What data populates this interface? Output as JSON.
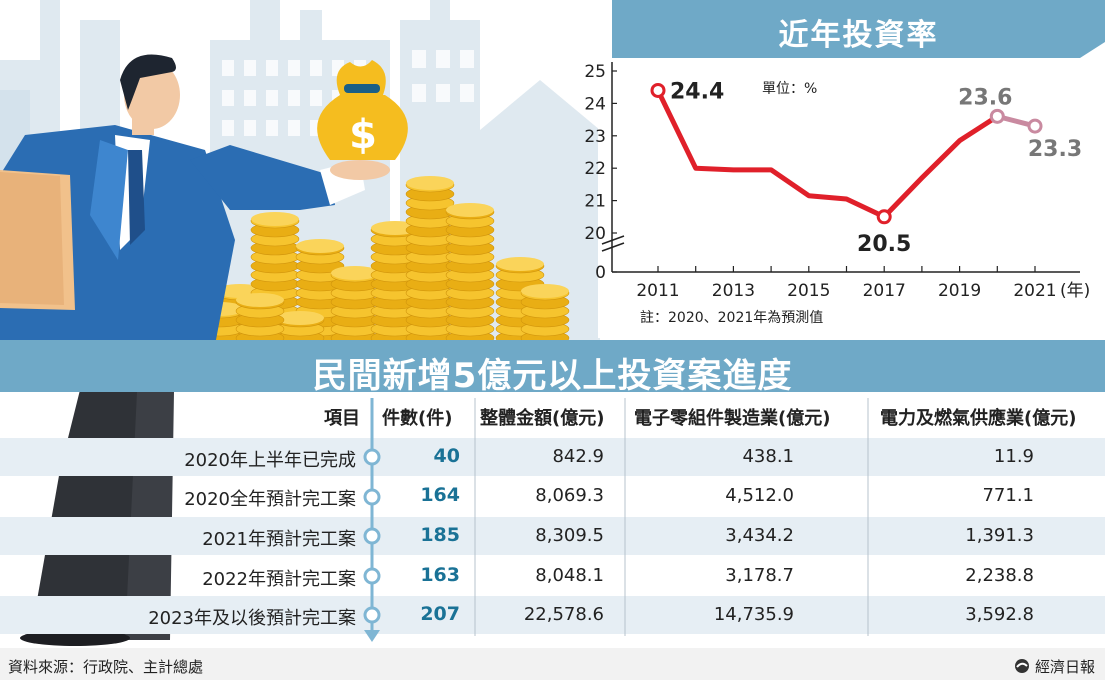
{
  "chart_data": {
    "type": "line",
    "title": "近年投資率",
    "unit_note": "單位：%",
    "footnote": "註：2020、2021年為預測值",
    "x_unit": "(年)",
    "x_ticks": [
      "2011",
      "2013",
      "2015",
      "2017",
      "2019",
      "2021"
    ],
    "y_ticks": [
      "0",
      "20",
      "21",
      "22",
      "23",
      "24",
      "25"
    ],
    "ylim": [
      20,
      25
    ],
    "axis_break": true,
    "series": [
      {
        "role": "actual",
        "x": [
          2011,
          2012,
          2013,
          2014,
          2015,
          2016,
          2017,
          2018,
          2019,
          2020
        ],
        "y": [
          24.4,
          22.0,
          21.95,
          21.95,
          21.15,
          21.05,
          20.5,
          21.7,
          22.85,
          23.6
        ]
      },
      {
        "role": "forecast",
        "x": [
          2020,
          2021
        ],
        "y": [
          23.6,
          23.3
        ]
      }
    ],
    "point_labels": [
      {
        "x": 2011,
        "y": 24.4,
        "text": "24.4"
      },
      {
        "x": 2017,
        "y": 20.5,
        "text": "20.5"
      },
      {
        "x": 2020,
        "y": 23.6,
        "text": "23.6"
      },
      {
        "x": 2021,
        "y": 23.3,
        "text": "23.3"
      }
    ]
  },
  "table": {
    "title": "民間新增5億元以上投資案進度",
    "headers": [
      "項目",
      "件數(件)",
      "整體金額(億元)",
      "電子零組件製造業(億元)",
      "電力及燃氣供應業(億元)"
    ],
    "rows": [
      {
        "item": "2020年上半年已完成",
        "count": "40",
        "total": "842.9",
        "electronics": "438.1",
        "power": "11.9"
      },
      {
        "item": "2020全年預計完工案",
        "count": "164",
        "total": "8,069.3",
        "electronics": "4,512.0",
        "power": "771.1"
      },
      {
        "item": "2021年預計完工案",
        "count": "185",
        "total": "8,309.5",
        "electronics": "3,434.2",
        "power": "1,391.3"
      },
      {
        "item": "2022年預計完工案",
        "count": "163",
        "total": "8,048.1",
        "electronics": "3,178.7",
        "power": "2,238.8"
      },
      {
        "item": "2023年及以後預計完工案",
        "count": "207",
        "total": "22,578.6",
        "electronics": "14,735.9",
        "power": "3,592.8"
      }
    ]
  },
  "footer": {
    "source": "資料來源：行政院、主計總處",
    "brand": "經濟日報"
  },
  "illustration": {
    "money_bag_symbol": "$"
  },
  "colors": {
    "banner": "#6fa9c7",
    "actual_line": "#e0202a",
    "forecast_line": "#c98aa0",
    "count_text": "#1a7296",
    "row_shade": "#e6eef4",
    "timeline": "#7fb6d4"
  }
}
